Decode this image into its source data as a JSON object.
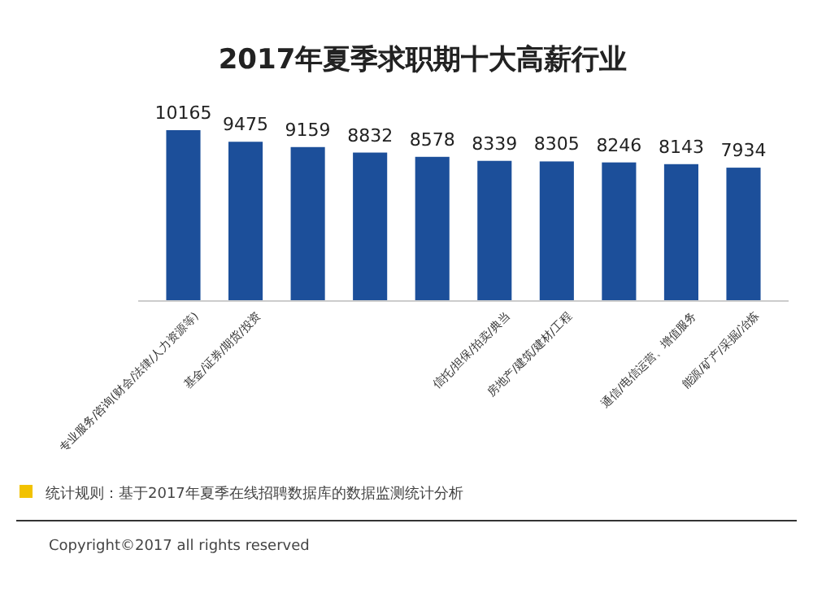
{
  "chart_data": {
    "type": "bar",
    "title": "2017年夏季求职期十大高薪行业",
    "categories": [
      "专业服务/咨询(财会/法律/人力资源等)",
      "基金/证券/期货/投资",
      null,
      null,
      null,
      "信托/担保/拍卖/典当",
      "房地产/建筑/建材/工程",
      null,
      "通信/电信运营、增值服务",
      "能源/矿产/采掘/冶炼"
    ],
    "values": [
      10165,
      9475,
      9159,
      8832,
      8578,
      8339,
      8305,
      8246,
      8143,
      7934
    ],
    "color": "#1c4f9a",
    "data_labels": true,
    "annotations": [
      "统计规则：基于2017年夏季在线招聘数据库的数据监测统计分析",
      "Copyright©2017 all rights reserved"
    ]
  }
}
